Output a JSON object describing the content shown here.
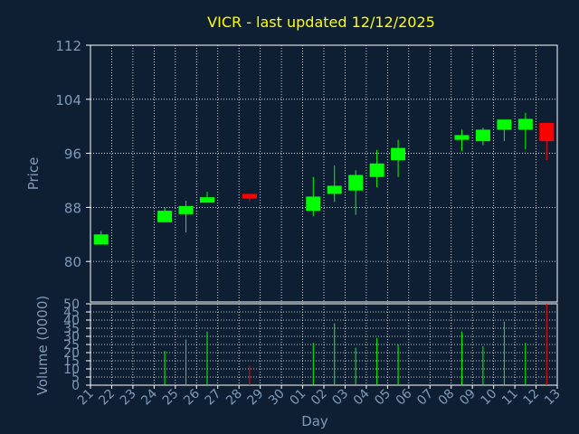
{
  "chart_data": {
    "type": "candlestick",
    "title": "VICR - last updated 12/12/2025",
    "xlabel": "Day",
    "ylabel": "Price",
    "volume_label": "Volume (0000)",
    "x_ticks": [
      "21",
      "22",
      "23",
      "24",
      "25",
      "26",
      "27",
      "28",
      "29",
      "30",
      "01",
      "02",
      "03",
      "04",
      "05",
      "06",
      "07",
      "08",
      "09",
      "10",
      "11",
      "12",
      "13"
    ],
    "price_ylim": [
      74,
      112
    ],
    "price_yticks": [
      80,
      88,
      96,
      104,
      112
    ],
    "volume_ylim": [
      0,
      50
    ],
    "volume_yticks": [
      0,
      5,
      10,
      15,
      20,
      25,
      30,
      35,
      40,
      45,
      50
    ],
    "grid": true,
    "colors": {
      "background": "#0f1f33",
      "up": "#00ff00",
      "down": "#ff0000",
      "grid": "#ffffff",
      "axis_text": "#7f9ab8",
      "title": "#ffff00"
    },
    "candles": [
      {
        "day": "21",
        "open": 82.5,
        "high": 84.5,
        "low": 82.5,
        "close": 84.0,
        "volume": 0
      },
      {
        "day": "24",
        "open": 85.8,
        "high": 88.0,
        "low": 85.8,
        "close": 87.5,
        "volume": 21
      },
      {
        "day": "25",
        "open": 87.0,
        "high": 89.0,
        "low": 84.3,
        "close": 88.2,
        "volume": 28
      },
      {
        "day": "26",
        "open": 88.7,
        "high": 90.3,
        "low": 88.7,
        "close": 89.5,
        "volume": 33
      },
      {
        "day": "28",
        "open": 90.0,
        "high": 90.0,
        "low": 88.9,
        "close": 89.3,
        "volume": 12
      },
      {
        "day": "01",
        "open": 87.5,
        "high": 92.5,
        "low": 86.7,
        "close": 89.6,
        "volume": 26
      },
      {
        "day": "02",
        "open": 90.0,
        "high": 94.2,
        "low": 88.8,
        "close": 91.2,
        "volume": 38
      },
      {
        "day": "03",
        "open": 90.5,
        "high": 93.5,
        "low": 86.9,
        "close": 92.8,
        "volume": 23
      },
      {
        "day": "04",
        "open": 92.5,
        "high": 96.5,
        "low": 91.0,
        "close": 94.5,
        "volume": 29
      },
      {
        "day": "05",
        "open": 95.0,
        "high": 98.0,
        "low": 92.5,
        "close": 96.8,
        "volume": 25
      },
      {
        "day": "08",
        "open": 98.0,
        "high": 99.5,
        "low": 96.3,
        "close": 98.7,
        "volume": 33
      },
      {
        "day": "09",
        "open": 97.8,
        "high": 99.8,
        "low": 97.2,
        "close": 99.5,
        "volume": 24
      },
      {
        "day": "10",
        "open": 99.5,
        "high": 101.0,
        "low": 97.8,
        "close": 101.0,
        "volume": 39
      },
      {
        "day": "11",
        "open": 99.5,
        "high": 102.0,
        "low": 96.6,
        "close": 101.1,
        "volume": 26
      },
      {
        "day": "12",
        "open": 100.5,
        "high": 100.5,
        "low": 95.0,
        "close": 97.8,
        "volume": 50
      }
    ]
  }
}
